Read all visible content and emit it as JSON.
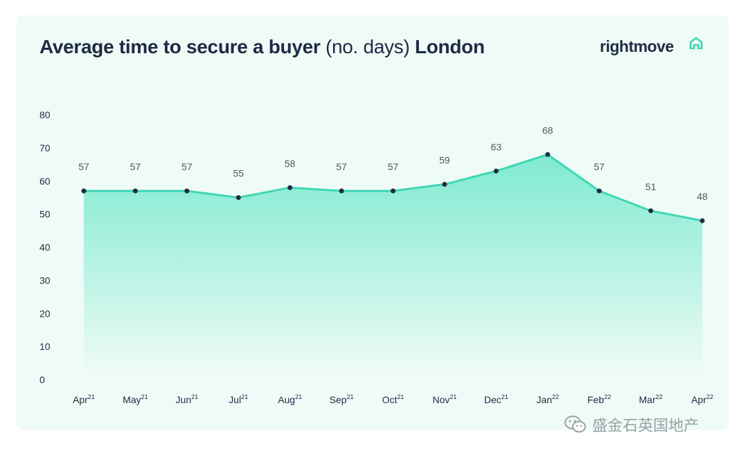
{
  "header": {
    "title_bold": "Average time to secure a buyer",
    "title_light": "(no. days)",
    "title_bold2": "London",
    "logo_text": "rightmove",
    "logo_icon": "house-outline-icon"
  },
  "watermark": {
    "text": "盛金石英国地产",
    "icon": "wechat-icon"
  },
  "colors": {
    "line": "#3ed6b3",
    "fill_top": "#7eead0",
    "fill_bottom": "#eefbf6",
    "point": "#1f2a44",
    "text": "#1f2a44",
    "label": "#555555"
  },
  "chart_data": {
    "type": "area",
    "title": "Average time to secure a buyer (no. days) London",
    "categories": [
      {
        "month": "Apr",
        "year": "21"
      },
      {
        "month": "May",
        "year": "21"
      },
      {
        "month": "Jun",
        "year": "21"
      },
      {
        "month": "Jul",
        "year": "21"
      },
      {
        "month": "Aug",
        "year": "21"
      },
      {
        "month": "Sep",
        "year": "21"
      },
      {
        "month": "Oct",
        "year": "21"
      },
      {
        "month": "Nov",
        "year": "21"
      },
      {
        "month": "Dec",
        "year": "21"
      },
      {
        "month": "Jan",
        "year": "22"
      },
      {
        "month": "Feb",
        "year": "22"
      },
      {
        "month": "Mar",
        "year": "22"
      },
      {
        "month": "Apr",
        "year": "22"
      }
    ],
    "values": [
      57,
      57,
      57,
      55,
      58,
      57,
      57,
      59,
      63,
      68,
      57,
      51,
      48
    ],
    "ylim": [
      0,
      80
    ],
    "yticks": [
      0,
      10,
      20,
      30,
      40,
      50,
      60,
      70,
      80
    ],
    "grid": false,
    "data_labels": true
  }
}
